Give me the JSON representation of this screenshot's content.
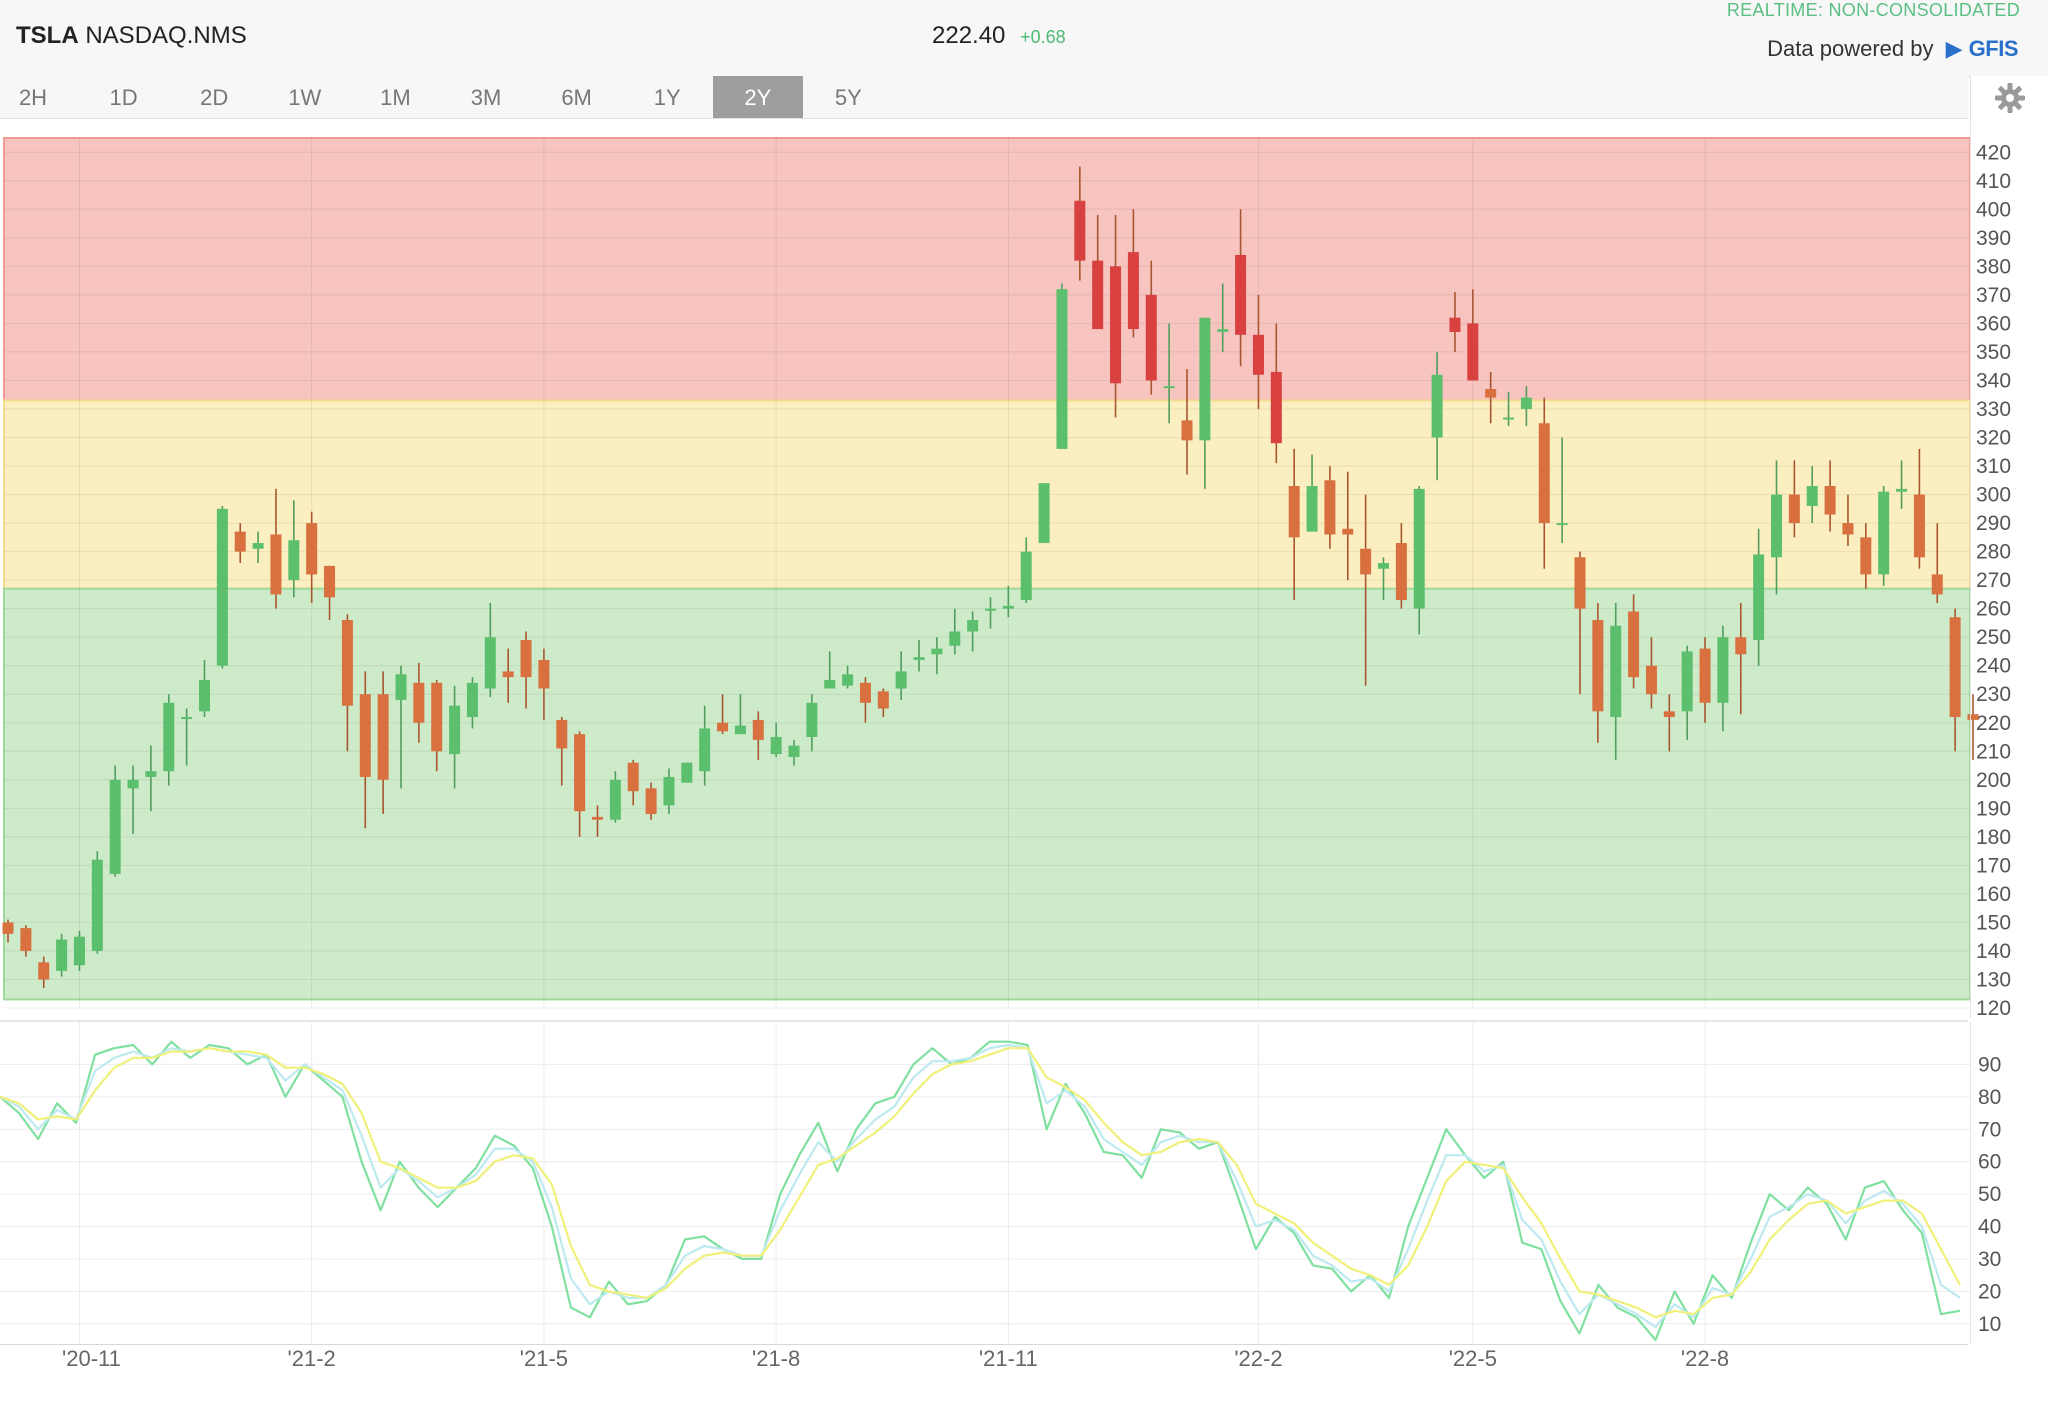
{
  "header": {
    "symbol": "TSLA",
    "exchange": "NASDAQ.NMS",
    "price": "222.40",
    "change": "+0.68",
    "realtime_label": "REALTIME: NON-CONSOLIDATED",
    "powered_label": "Data powered by",
    "provider": "GFIS"
  },
  "tabs": [
    {
      "label": "2H"
    },
    {
      "label": "1D"
    },
    {
      "label": "2D"
    },
    {
      "label": "1W"
    },
    {
      "label": "1M"
    },
    {
      "label": "3M"
    },
    {
      "label": "6M"
    },
    {
      "label": "1Y"
    },
    {
      "label": "2Y",
      "active": true
    },
    {
      "label": "5Y"
    }
  ],
  "icons": {
    "settings": "gear-icon"
  },
  "colors": {
    "up": "#5cbf6e",
    "down": "#d8703f",
    "down_strong": "#d94040",
    "zone_high": "#f7c4c0",
    "zone_mid": "#fbeec0",
    "zone_low": "#cdebc9",
    "osc_fast": "#7fe0a0",
    "osc_mid": "#bde9f0",
    "osc_slow": "#f0f07a"
  },
  "chart_data": [
    {
      "type": "candlestick",
      "ylim": [
        120,
        420
      ],
      "y_ticks": [
        120,
        130,
        140,
        150,
        160,
        170,
        180,
        190,
        200,
        210,
        220,
        230,
        240,
        250,
        260,
        270,
        280,
        290,
        300,
        310,
        320,
        330,
        340,
        350,
        360,
        370,
        380,
        390,
        400,
        410,
        420
      ],
      "x_ticks": [
        "'20-11",
        "'21-2",
        "'21-5",
        "'21-8",
        "'21-11",
        "'22-2",
        "'22-5",
        "'22-8"
      ],
      "zones": [
        {
          "name": "high",
          "from": 333,
          "to": 425
        },
        {
          "name": "mid",
          "from": 267,
          "to": 333
        },
        {
          "name": "low",
          "from": 123,
          "to": 267
        }
      ],
      "candles": [
        [
          150,
          146,
          151,
          143
        ],
        [
          148,
          140,
          149,
          138
        ],
        [
          136,
          130,
          138,
          127
        ],
        [
          133,
          144,
          146,
          131
        ],
        [
          135,
          145,
          147,
          133
        ],
        [
          140,
          172,
          175,
          139
        ],
        [
          167,
          200,
          205,
          166
        ],
        [
          197,
          200,
          205,
          181
        ],
        [
          201,
          203,
          212,
          189
        ],
        [
          203,
          227,
          230,
          198
        ],
        [
          222,
          222,
          225,
          205
        ],
        [
          224,
          235,
          242,
          222
        ],
        [
          240,
          295,
          296,
          239
        ],
        [
          287,
          280,
          290,
          276
        ],
        [
          281,
          283,
          287,
          276
        ],
        [
          286,
          265,
          302,
          260
        ],
        [
          270,
          284,
          298,
          264
        ],
        [
          290,
          272,
          294,
          262
        ],
        [
          275,
          264,
          275,
          256
        ],
        [
          256,
          226,
          258,
          210
        ],
        [
          230,
          201,
          238,
          183
        ],
        [
          230,
          200,
          238,
          188
        ],
        [
          228,
          237,
          240,
          197
        ],
        [
          234,
          220,
          241,
          213
        ],
        [
          234,
          210,
          235,
          203
        ],
        [
          209,
          226,
          233,
          197
        ],
        [
          222,
          234,
          236,
          218
        ],
        [
          232,
          250,
          262,
          229
        ],
        [
          238,
          236,
          246,
          227
        ],
        [
          249,
          236,
          252,
          225
        ],
        [
          242,
          232,
          246,
          221
        ],
        [
          221,
          211,
          222,
          198
        ],
        [
          216,
          189,
          217,
          180
        ],
        [
          187,
          186,
          191,
          180
        ],
        [
          186,
          200,
          203,
          185
        ],
        [
          206,
          196,
          207,
          191
        ],
        [
          197,
          188,
          199,
          186
        ],
        [
          191,
          201,
          204,
          188
        ],
        [
          199,
          206,
          206,
          201
        ],
        [
          203,
          218,
          226,
          198
        ],
        [
          220,
          217,
          230,
          216
        ],
        [
          216,
          219,
          230,
          216
        ],
        [
          221,
          214,
          224,
          207
        ],
        [
          209,
          215,
          220,
          208
        ],
        [
          208,
          212,
          214,
          205
        ],
        [
          215,
          227,
          230,
          210
        ],
        [
          232,
          235,
          245,
          232
        ],
        [
          233,
          237,
          240,
          232
        ],
        [
          234,
          227,
          236,
          220
        ],
        [
          231,
          225,
          232,
          222
        ],
        [
          232,
          238,
          245,
          228
        ],
        [
          242,
          243,
          249,
          238
        ],
        [
          244,
          246,
          250,
          237
        ],
        [
          247,
          252,
          260,
          244
        ],
        [
          252,
          256,
          259,
          245
        ],
        [
          260,
          260,
          264,
          253
        ],
        [
          260,
          261,
          268,
          257
        ],
        [
          263,
          280,
          285,
          262
        ],
        [
          283,
          304,
          304,
          283
        ],
        [
          316,
          372,
          374,
          317
        ],
        [
          403,
          382,
          415,
          375
        ],
        [
          382,
          358,
          398,
          363
        ],
        [
          380,
          339,
          398,
          327
        ],
        [
          385,
          358,
          400,
          355
        ],
        [
          370,
          340,
          382,
          335
        ],
        [
          338,
          338,
          360,
          325
        ],
        [
          326,
          319,
          344,
          307
        ],
        [
          319,
          362,
          362,
          302
        ],
        [
          357,
          358,
          374,
          350
        ],
        [
          384,
          356,
          400,
          345
        ],
        [
          356,
          342,
          370,
          330
        ],
        [
          343,
          318,
          360,
          311
        ],
        [
          303,
          285,
          316,
          263
        ],
        [
          287,
          303,
          314,
          290
        ],
        [
          305,
          286,
          310,
          281
        ],
        [
          288,
          286,
          308,
          270
        ],
        [
          281,
          272,
          300,
          233
        ],
        [
          274,
          276,
          278,
          263
        ],
        [
          283,
          263,
          290,
          260
        ],
        [
          260,
          302,
          303,
          251
        ],
        [
          320,
          342,
          350,
          305
        ],
        [
          362,
          357,
          371,
          350
        ],
        [
          360,
          340,
          372,
          340
        ],
        [
          337,
          334,
          343,
          325
        ],
        [
          327,
          327,
          336,
          324
        ],
        [
          330,
          334,
          338,
          324
        ],
        [
          325,
          290,
          334,
          274
        ],
        [
          290,
          290,
          320,
          283
        ],
        [
          278,
          260,
          280,
          230
        ],
        [
          256,
          224,
          262,
          213
        ],
        [
          222,
          254,
          262,
          207
        ],
        [
          259,
          236,
          265,
          232
        ],
        [
          240,
          230,
          250,
          225
        ],
        [
          224,
          222,
          230,
          210
        ],
        [
          224,
          245,
          247,
          214
        ],
        [
          246,
          227,
          250,
          220
        ],
        [
          227,
          250,
          254,
          217
        ],
        [
          250,
          244,
          262,
          223
        ],
        [
          249,
          279,
          288,
          240
        ],
        [
          278,
          300,
          312,
          265
        ],
        [
          300,
          290,
          312,
          285
        ],
        [
          296,
          303,
          310,
          290
        ],
        [
          303,
          293,
          312,
          287
        ],
        [
          290,
          286,
          300,
          282
        ],
        [
          285,
          272,
          290,
          267
        ],
        [
          272,
          301,
          303,
          268
        ],
        [
          301,
          302,
          312,
          295
        ],
        [
          300,
          278,
          316,
          274
        ],
        [
          272,
          265,
          290,
          262
        ],
        [
          257,
          222,
          260,
          210
        ],
        [
          223,
          221,
          230,
          207
        ]
      ]
    },
    {
      "type": "line",
      "ylim": [
        5,
        100
      ],
      "y_ticks": [
        10,
        20,
        30,
        40,
        50,
        60,
        70,
        80,
        90
      ],
      "series": [
        {
          "values": [
            80,
            75,
            67,
            78,
            72,
            93,
            95,
            96,
            90,
            97,
            92,
            96,
            95,
            90,
            93,
            80,
            90,
            85,
            80,
            60,
            45,
            60,
            52,
            46,
            52,
            58,
            68,
            65,
            58,
            40,
            15,
            12,
            23,
            16,
            17,
            22,
            36,
            37,
            33,
            30,
            30,
            50,
            62,
            72,
            57,
            70,
            78,
            80,
            90,
            95,
            90,
            92,
            97,
            97,
            96,
            70,
            84,
            75,
            63,
            62,
            55,
            70,
            69,
            64,
            66,
            50,
            33,
            43,
            38,
            28,
            27,
            20,
            25,
            18,
            40,
            55,
            70,
            62,
            55,
            60,
            35,
            33,
            17,
            7,
            22,
            15,
            12,
            5,
            20,
            10,
            25,
            18,
            35,
            50,
            45,
            52,
            47,
            36,
            52,
            54,
            45,
            38,
            13,
            14
          ]
        },
        {
          "values": [
            80,
            77,
            70,
            76,
            73,
            88,
            92,
            94,
            92,
            95,
            94,
            95,
            94,
            93,
            92,
            85,
            90,
            86,
            82,
            68,
            52,
            58,
            54,
            49,
            52,
            56,
            64,
            64,
            60,
            46,
            24,
            16,
            20,
            18,
            18,
            22,
            31,
            34,
            33,
            31,
            31,
            45,
            56,
            66,
            60,
            67,
            73,
            77,
            86,
            91,
            91,
            92,
            95,
            96,
            95,
            78,
            82,
            77,
            67,
            63,
            59,
            66,
            68,
            66,
            66,
            54,
            40,
            42,
            39,
            31,
            28,
            23,
            24,
            20,
            33,
            48,
            62,
            62,
            57,
            59,
            42,
            36,
            23,
            13,
            19,
            16,
            13,
            9,
            16,
            12,
            21,
            19,
            30,
            43,
            46,
            50,
            48,
            41,
            48,
            51,
            47,
            40,
            22,
            18
          ]
        },
        {
          "values": [
            80,
            78,
            73,
            74,
            73,
            82,
            89,
            92,
            92,
            94,
            94,
            95,
            94,
            94,
            93,
            89,
            89,
            87,
            84,
            75,
            60,
            58,
            55,
            52,
            52,
            54,
            60,
            62,
            61,
            53,
            34,
            22,
            20,
            19,
            18,
            21,
            27,
            31,
            32,
            31,
            31,
            39,
            49,
            59,
            61,
            65,
            69,
            74,
            81,
            87,
            90,
            91,
            93,
            95,
            95,
            86,
            83,
            79,
            72,
            66,
            62,
            63,
            66,
            67,
            66,
            59,
            47,
            44,
            41,
            35,
            31,
            27,
            25,
            22,
            28,
            40,
            54,
            60,
            59,
            58,
            49,
            41,
            30,
            20,
            19,
            17,
            15,
            12,
            14,
            13,
            18,
            19,
            26,
            36,
            42,
            47,
            48,
            44,
            46,
            48,
            48,
            44,
            33,
            22
          ]
        }
      ]
    }
  ]
}
